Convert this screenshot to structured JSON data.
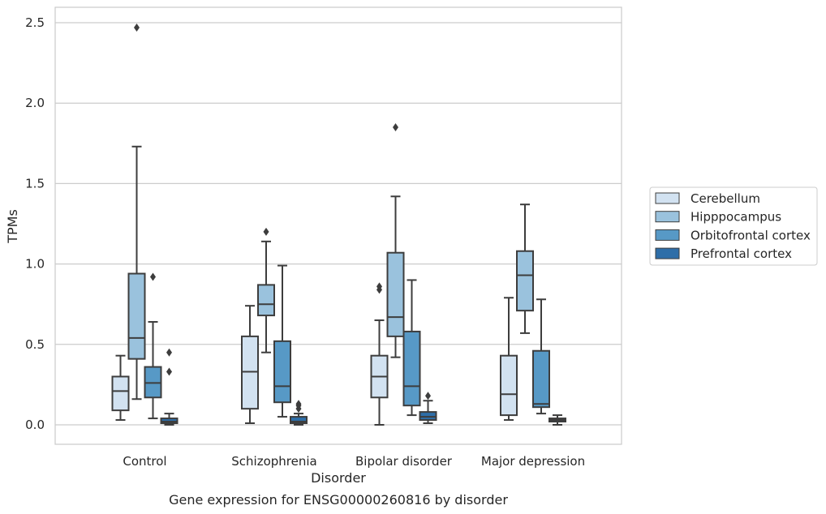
{
  "chart_data": {
    "type": "box",
    "title": "",
    "caption": "Gene expression for ENSG00000260816 by disorder",
    "xlabel": "Disorder",
    "ylabel": "TPMs",
    "ylim": [
      -0.12,
      2.6
    ],
    "yticks": [
      "0.0",
      "0.5",
      "1.0",
      "1.5",
      "2.0",
      "2.5"
    ],
    "grid": "horizontal",
    "legend_position": "right",
    "categories": [
      "Control",
      "Schizophrenia",
      "Bipolar disorder",
      "Major depression"
    ],
    "series": [
      {
        "name": "Cerebellum",
        "color": "#d2e2f1",
        "boxes": [
          {
            "whislo": 0.03,
            "q1": 0.09,
            "med": 0.21,
            "q3": 0.3,
            "whishi": 0.43,
            "fliers": []
          },
          {
            "whislo": 0.01,
            "q1": 0.1,
            "med": 0.33,
            "q3": 0.55,
            "whishi": 0.74,
            "fliers": []
          },
          {
            "whislo": 0.0,
            "q1": 0.17,
            "med": 0.3,
            "q3": 0.43,
            "whishi": 0.65,
            "fliers": [
              0.84,
              0.86
            ]
          },
          {
            "whislo": 0.03,
            "q1": 0.06,
            "med": 0.19,
            "q3": 0.43,
            "whishi": 0.79,
            "fliers": []
          }
        ]
      },
      {
        "name": "Hipppocampus",
        "color": "#9ac2dd",
        "boxes": [
          {
            "whislo": 0.16,
            "q1": 0.41,
            "med": 0.54,
            "q3": 0.94,
            "whishi": 1.73,
            "fliers": [
              2.47
            ]
          },
          {
            "whislo": 0.45,
            "q1": 0.68,
            "med": 0.75,
            "q3": 0.87,
            "whishi": 1.14,
            "fliers": [
              1.2
            ]
          },
          {
            "whislo": 0.42,
            "q1": 0.55,
            "med": 0.67,
            "q3": 1.07,
            "whishi": 1.42,
            "fliers": [
              1.85
            ]
          },
          {
            "whislo": 0.57,
            "q1": 0.71,
            "med": 0.93,
            "q3": 1.08,
            "whishi": 1.37,
            "fliers": []
          }
        ]
      },
      {
        "name": "Orbitofrontal cortex",
        "color": "#5799c6",
        "boxes": [
          {
            "whislo": 0.04,
            "q1": 0.17,
            "med": 0.26,
            "q3": 0.36,
            "whishi": 0.64,
            "fliers": [
              0.92
            ]
          },
          {
            "whislo": 0.05,
            "q1": 0.14,
            "med": 0.24,
            "q3": 0.52,
            "whishi": 0.99,
            "fliers": []
          },
          {
            "whislo": 0.06,
            "q1": 0.12,
            "med": 0.24,
            "q3": 0.58,
            "whishi": 0.9,
            "fliers": []
          },
          {
            "whislo": 0.07,
            "q1": 0.11,
            "med": 0.13,
            "q3": 0.46,
            "whishi": 0.78,
            "fliers": []
          }
        ]
      },
      {
        "name": "Prefrontal cortex",
        "color": "#2e6ea8",
        "boxes": [
          {
            "whislo": 0.0,
            "q1": 0.01,
            "med": 0.02,
            "q3": 0.04,
            "whishi": 0.07,
            "fliers": [
              0.33,
              0.45
            ]
          },
          {
            "whislo": 0.0,
            "q1": 0.01,
            "med": 0.02,
            "q3": 0.05,
            "whishi": 0.07,
            "fliers": [
              0.1,
              0.12,
              0.13
            ]
          },
          {
            "whislo": 0.01,
            "q1": 0.03,
            "med": 0.05,
            "q3": 0.08,
            "whishi": 0.15,
            "fliers": [
              0.18
            ]
          },
          {
            "whislo": 0.0,
            "q1": 0.02,
            "med": 0.03,
            "q3": 0.04,
            "whishi": 0.06,
            "fliers": []
          }
        ]
      }
    ]
  }
}
